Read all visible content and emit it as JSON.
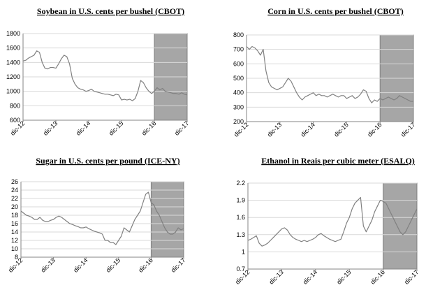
{
  "chart_data": [
    {
      "type": "line",
      "title": "Soybean in U.S. cents per bushel (CBOT)",
      "color": "#808080",
      "grid": true,
      "x": [
        0,
        1,
        2,
        3,
        4,
        5,
        6,
        7,
        8,
        9,
        10,
        11,
        12,
        13,
        14,
        15,
        16,
        17,
        18,
        19,
        20,
        21,
        22,
        23,
        24,
        25,
        26,
        27,
        28,
        29,
        30,
        31,
        32,
        33,
        34,
        35,
        36,
        37,
        38,
        39,
        40,
        41,
        42,
        43,
        44,
        45,
        46,
        47,
        48,
        49,
        50,
        51,
        52,
        53,
        54,
        55,
        56,
        57,
        58,
        59,
        60
      ],
      "values": [
        1420,
        1430,
        1460,
        1480,
        1500,
        1560,
        1540,
        1400,
        1320,
        1310,
        1330,
        1330,
        1320,
        1380,
        1450,
        1500,
        1480,
        1380,
        1180,
        1100,
        1050,
        1030,
        1020,
        1000,
        1010,
        1030,
        1000,
        990,
        980,
        970,
        960,
        960,
        950,
        940,
        960,
        950,
        880,
        890,
        880,
        890,
        870,
        900,
        1000,
        1150,
        1120,
        1050,
        1000,
        970,
        1000,
        1050,
        1020,
        1040,
        1000,
        990,
        980,
        970,
        970,
        960,
        980,
        960,
        950
      ],
      "xlim": [
        0,
        60
      ],
      "xticks": [
        {
          "value": 0,
          "label": "dic-12"
        },
        {
          "value": 12,
          "label": "dic-13"
        },
        {
          "value": 24,
          "label": "dic-14"
        },
        {
          "value": 36,
          "label": "dic-15"
        },
        {
          "value": 48,
          "label": "dic-16"
        },
        {
          "value": 60,
          "label": "dic-17"
        }
      ],
      "ylim": [
        600,
        1800
      ],
      "yticks": [
        600,
        800,
        1000,
        1200,
        1400,
        1600,
        1800
      ],
      "shade": {
        "from": 48,
        "to": 60,
        "color": "#a6a6a6"
      }
    },
    {
      "type": "line",
      "title": "Corn in U.S. cents per bushel (CBOT)",
      "color": "#808080",
      "grid": true,
      "x": [
        0,
        1,
        2,
        3,
        4,
        5,
        6,
        7,
        8,
        9,
        10,
        11,
        12,
        13,
        14,
        15,
        16,
        17,
        18,
        19,
        20,
        21,
        22,
        23,
        24,
        25,
        26,
        27,
        28,
        29,
        30,
        31,
        32,
        33,
        34,
        35,
        36,
        37,
        38,
        39,
        40,
        41,
        42,
        43,
        44,
        45,
        46,
        47,
        48,
        49,
        50,
        51,
        52,
        53,
        54,
        55,
        56,
        57,
        58,
        59,
        60
      ],
      "values": [
        720,
        700,
        720,
        710,
        690,
        660,
        700,
        550,
        470,
        440,
        430,
        420,
        430,
        440,
        470,
        500,
        480,
        440,
        400,
        370,
        350,
        370,
        380,
        390,
        400,
        380,
        390,
        380,
        380,
        370,
        380,
        390,
        380,
        370,
        380,
        380,
        360,
        370,
        380,
        360,
        370,
        390,
        420,
        410,
        360,
        330,
        350,
        340,
        360,
        350,
        360,
        370,
        360,
        350,
        360,
        380,
        370,
        360,
        350,
        340,
        340
      ],
      "xlim": [
        0,
        60
      ],
      "xticks": [
        {
          "value": 0,
          "label": "dic-12"
        },
        {
          "value": 12,
          "label": "dic-13"
        },
        {
          "value": 24,
          "label": "dic-14"
        },
        {
          "value": 36,
          "label": "dic-15"
        },
        {
          "value": 48,
          "label": "dic-16"
        },
        {
          "value": 60,
          "label": "dic-17"
        }
      ],
      "ylim": [
        200,
        800
      ],
      "yticks": [
        200,
        300,
        400,
        500,
        600,
        700,
        800
      ],
      "shade": {
        "from": 48,
        "to": 60,
        "color": "#a6a6a6"
      }
    },
    {
      "type": "line",
      "title": "Sugar in U.S. cents per pound (ICE-NY)",
      "color": "#808080",
      "grid": true,
      "x": [
        0,
        1,
        2,
        3,
        4,
        5,
        6,
        7,
        8,
        9,
        10,
        11,
        12,
        13,
        14,
        15,
        16,
        17,
        18,
        19,
        20,
        21,
        22,
        23,
        24,
        25,
        26,
        27,
        28,
        29,
        30,
        31,
        32,
        33,
        34,
        35,
        36,
        37,
        38,
        39,
        40,
        41,
        42,
        43,
        44,
        45,
        46,
        47,
        48,
        49,
        50,
        51,
        52,
        53,
        54,
        55,
        56,
        57,
        58,
        59,
        60
      ],
      "values": [
        19,
        18.5,
        18,
        17.8,
        17.5,
        17,
        17,
        17.5,
        16.8,
        16.5,
        16.5,
        16.8,
        17,
        17.5,
        17.8,
        17.5,
        17,
        16.5,
        16,
        15.8,
        15.5,
        15.3,
        15,
        15,
        15.2,
        14.8,
        14.5,
        14.2,
        14,
        13.8,
        13.5,
        12,
        12,
        11.5,
        11.5,
        11,
        12,
        13,
        15,
        14.5,
        14,
        15.5,
        17,
        18,
        19,
        21,
        23,
        23.5,
        21,
        20.5,
        19,
        18,
        16.5,
        15,
        14,
        13.5,
        13.5,
        14,
        15,
        14.5,
        14.8
      ],
      "xlim": [
        0,
        60
      ],
      "xticks": [
        {
          "value": 0,
          "label": "dic-12"
        },
        {
          "value": 12,
          "label": "dic-13"
        },
        {
          "value": 24,
          "label": "dic-14"
        },
        {
          "value": 36,
          "label": "dic-15"
        },
        {
          "value": 48,
          "label": "dic-16"
        },
        {
          "value": 60,
          "label": "dic-17"
        }
      ],
      "ylim": [
        8,
        26
      ],
      "yticks": [
        8,
        10,
        12,
        14,
        16,
        18,
        20,
        22,
        24,
        26
      ],
      "shade": {
        "from": 48,
        "to": 60,
        "color": "#a6a6a6"
      }
    },
    {
      "type": "line",
      "title": "Ethanol in Reais per cubic meter (ESALQ)",
      "color": "#808080",
      "grid": true,
      "x": [
        0,
        1,
        2,
        3,
        4,
        5,
        6,
        7,
        8,
        9,
        10,
        11,
        12,
        13,
        14,
        15,
        16,
        17,
        18,
        19,
        20,
        21,
        22,
        23,
        24,
        25,
        26,
        27,
        28,
        29,
        30,
        31,
        32,
        33,
        34,
        35,
        36,
        37,
        38,
        39,
        40,
        41,
        42,
        43,
        44,
        45,
        46,
        47,
        48,
        49,
        50,
        51,
        52,
        53,
        54,
        55,
        56,
        57,
        58,
        59,
        60
      ],
      "values": [
        1.2,
        1.22,
        1.25,
        1.28,
        1.15,
        1.1,
        1.12,
        1.15,
        1.2,
        1.25,
        1.3,
        1.35,
        1.4,
        1.42,
        1.38,
        1.3,
        1.25,
        1.22,
        1.2,
        1.18,
        1.2,
        1.18,
        1.2,
        1.22,
        1.25,
        1.3,
        1.32,
        1.28,
        1.25,
        1.22,
        1.2,
        1.18,
        1.2,
        1.22,
        1.35,
        1.5,
        1.6,
        1.75,
        1.85,
        1.9,
        1.95,
        1.45,
        1.35,
        1.45,
        1.55,
        1.7,
        1.8,
        1.9,
        1.88,
        1.85,
        1.75,
        1.65,
        1.55,
        1.45,
        1.35,
        1.3,
        1.35,
        1.45,
        1.55,
        1.65,
        1.75
      ],
      "xlim": [
        0,
        60
      ],
      "xticks": [
        {
          "value": 0,
          "label": "dic-12"
        },
        {
          "value": 12,
          "label": "dic-13"
        },
        {
          "value": 24,
          "label": "dic-14"
        },
        {
          "value": 36,
          "label": "dic-15"
        },
        {
          "value": 48,
          "label": "dic-16"
        },
        {
          "value": 60,
          "label": "dic-17"
        }
      ],
      "ylim": [
        0.7,
        2.2
      ],
      "yticks": [
        0.7,
        1,
        1.3,
        1.6,
        1.9,
        2.2
      ],
      "shade": {
        "from": 48,
        "to": 60,
        "color": "#a6a6a6"
      }
    }
  ]
}
